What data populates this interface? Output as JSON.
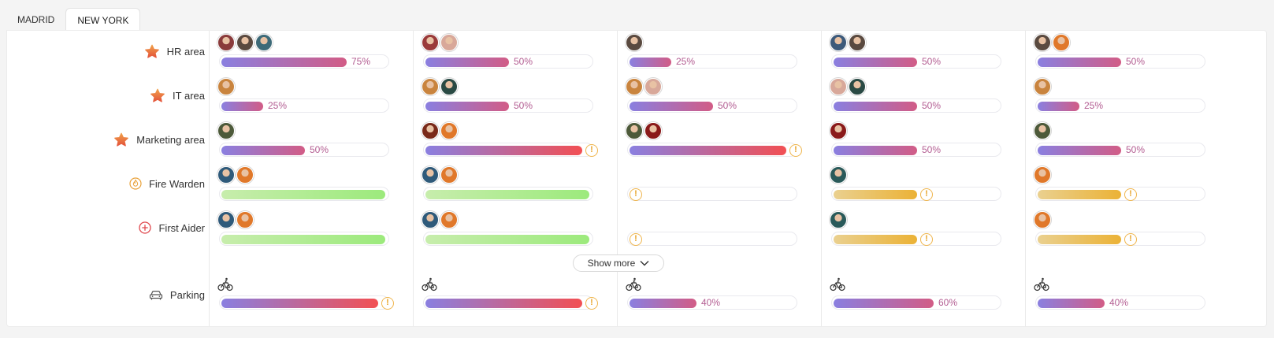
{
  "tabs": [
    {
      "label": "MADRID",
      "active": false
    },
    {
      "label": "NEW YORK",
      "active": true
    }
  ],
  "rows": [
    {
      "key": "hr",
      "label": "HR area",
      "icon": "star-icon"
    },
    {
      "key": "it",
      "label": "IT area",
      "icon": "star-icon"
    },
    {
      "key": "mkt",
      "label": "Marketing area",
      "icon": "star-icon"
    },
    {
      "key": "fire",
      "label": "Fire Warden",
      "icon": "flame-icon"
    },
    {
      "key": "aid",
      "label": "First Aider",
      "icon": "plus-circle-icon"
    },
    {
      "key": "park",
      "label": "Parking",
      "icon": "car-icon"
    }
  ],
  "show_more_label": "Show more",
  "colors": {
    "accent": "#b35d92",
    "warning": "#efb54d",
    "fill_gradient_start": "#8a7fe0",
    "fill_gradient_end": "#d25c86",
    "alert_end": "#f24f53",
    "green_fill": "#9cea7c",
    "yellow_fill": "#ebb236"
  },
  "columns": [
    {
      "cells": [
        {
          "avatars": [
            "#8a3b3b",
            "#5a4a40",
            "#3d6a78"
          ],
          "fill": 0.75,
          "style": "purple",
          "pct": "75%",
          "warning": false
        },
        {
          "avatars": [
            "#c9843e"
          ],
          "fill": 0.25,
          "style": "purple",
          "pct": "25%",
          "warning": false
        },
        {
          "avatars": [
            "#4d5a3a"
          ],
          "fill": 0.5,
          "style": "purple",
          "pct": "50%",
          "warning": false
        },
        {
          "avatars": [
            "#2f5a7a",
            "#e0782a"
          ],
          "fill": 0.98,
          "style": "green",
          "pct": "",
          "warning": false
        },
        {
          "avatars": [
            "#2f5a7a",
            "#e0782a"
          ],
          "fill": 0.98,
          "style": "green",
          "pct": "",
          "warning": false
        },
        {
          "avatars": [],
          "fill": 0.94,
          "style": "alert",
          "pct": "",
          "warning": true
        }
      ]
    },
    {
      "cells": [
        {
          "avatars": [
            "#9a3a3a",
            "#d8a89a"
          ],
          "fill": 0.5,
          "style": "purple",
          "pct": "50%",
          "warning": false
        },
        {
          "avatars": [
            "#c9843e",
            "#2a4a44"
          ],
          "fill": 0.5,
          "style": "purple",
          "pct": "50%",
          "warning": false
        },
        {
          "avatars": [
            "#7a2a1a",
            "#e0782a"
          ],
          "fill": 0.94,
          "style": "alert",
          "pct": "",
          "warning": true
        },
        {
          "avatars": [
            "#2f5a7a",
            "#e0782a"
          ],
          "fill": 0.98,
          "style": "green",
          "pct": "",
          "warning": false
        },
        {
          "avatars": [
            "#2f5a7a",
            "#e0782a"
          ],
          "fill": 0.98,
          "style": "green",
          "pct": "",
          "warning": false
        },
        {
          "avatars": [],
          "fill": 0.94,
          "style": "alert",
          "pct": "",
          "warning": true
        }
      ]
    },
    {
      "cells": [
        {
          "avatars": [
            "#5a4a40"
          ],
          "fill": 0.25,
          "style": "purple",
          "pct": "25%",
          "warning": false
        },
        {
          "avatars": [
            "#c9843e",
            "#d8a89a"
          ],
          "fill": 0.5,
          "style": "purple",
          "pct": "50%",
          "warning": false
        },
        {
          "avatars": [
            "#4d5a3a",
            "#8a1a1a"
          ],
          "fill": 0.94,
          "style": "alert",
          "pct": "",
          "warning": true
        },
        {
          "avatars": [],
          "fill": 0,
          "style": "purple",
          "pct": "",
          "warning": true
        },
        {
          "avatars": [],
          "fill": 0,
          "style": "purple",
          "pct": "",
          "warning": true
        },
        {
          "avatars": [],
          "fill": 0.4,
          "style": "purple",
          "pct": "40%",
          "warning": false
        }
      ]
    },
    {
      "cells": [
        {
          "avatars": [
            "#3d5a7a",
            "#5a4a40"
          ],
          "fill": 0.5,
          "style": "purple",
          "pct": "50%",
          "warning": false
        },
        {
          "avatars": [
            "#d8a89a",
            "#2a4a44"
          ],
          "fill": 0.5,
          "style": "purple",
          "pct": "50%",
          "warning": false
        },
        {
          "avatars": [
            "#8a1a1a"
          ],
          "fill": 0.5,
          "style": "purple",
          "pct": "50%",
          "warning": false
        },
        {
          "avatars": [
            "#2a5a5a"
          ],
          "fill": 0.5,
          "style": "yellow",
          "pct": "",
          "warning": true
        },
        {
          "avatars": [
            "#2a5a5a"
          ],
          "fill": 0.5,
          "style": "yellow",
          "pct": "",
          "warning": true
        },
        {
          "avatars": [],
          "fill": 0.6,
          "style": "purple",
          "pct": "60%",
          "warning": false
        }
      ]
    },
    {
      "cells": [
        {
          "avatars": [
            "#5a4a40",
            "#e0782a"
          ],
          "fill": 0.5,
          "style": "purple",
          "pct": "50%",
          "warning": false
        },
        {
          "avatars": [
            "#c9843e"
          ],
          "fill": 0.25,
          "style": "purple",
          "pct": "25%",
          "warning": false
        },
        {
          "avatars": [
            "#4d5a3a"
          ],
          "fill": 0.5,
          "style": "purple",
          "pct": "50%",
          "warning": false
        },
        {
          "avatars": [
            "#e0782a"
          ],
          "fill": 0.5,
          "style": "yellow",
          "pct": "",
          "warning": true
        },
        {
          "avatars": [
            "#e0782a"
          ],
          "fill": 0.5,
          "style": "yellow",
          "pct": "",
          "warning": true
        },
        {
          "avatars": [],
          "fill": 0.4,
          "style": "purple",
          "pct": "40%",
          "warning": false
        }
      ]
    }
  ]
}
